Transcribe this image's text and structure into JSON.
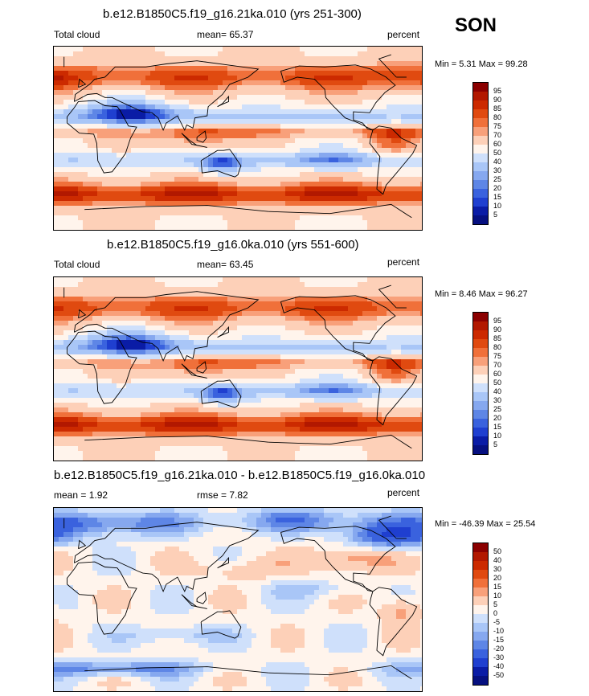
{
  "season": "SON",
  "chart_data": [
    {
      "type": "heatmap",
      "title": "b.e12.B1850C5.f19_g16.21ka.010 (yrs 251-300)",
      "left_label": "Total cloud",
      "center_label": "mean=  65.37",
      "right_label": "percent",
      "mean": 65.37,
      "min_max_label": "Min =   5.31 Max =  99.28",
      "min": 5.31,
      "max": 99.28,
      "units": "percent",
      "colorbar_levels": [
        "95",
        "90",
        "85",
        "80",
        "75",
        "70",
        "60",
        "50",
        "40",
        "30",
        "25",
        "20",
        "15",
        "10",
        "5"
      ],
      "colorbar_colors": [
        "#8b0000",
        "#b21800",
        "#cc2a00",
        "#e04a10",
        "#f0703a",
        "#f8a07a",
        "#fdd0b8",
        "#fff4ec",
        "#cfe0fb",
        "#a9c6f7",
        "#86a8ef",
        "#5e86e6",
        "#3a62de",
        "#1f3fd0",
        "#0a1ca6",
        "#061080"
      ],
      "field": "total_cloud_21ka"
    },
    {
      "type": "heatmap",
      "title": "b.e12.B1850C5.f19_g16.0ka.010 (yrs 551-600)",
      "left_label": "Total cloud",
      "center_label": "mean=  63.45",
      "right_label": "percent",
      "mean": 63.45,
      "min_max_label": "Min =   8.46 Max =  96.27",
      "min": 8.46,
      "max": 96.27,
      "units": "percent",
      "colorbar_levels": [
        "95",
        "90",
        "85",
        "80",
        "75",
        "70",
        "60",
        "50",
        "40",
        "30",
        "25",
        "20",
        "15",
        "10",
        "5"
      ],
      "colorbar_colors": [
        "#8b0000",
        "#b21800",
        "#cc2a00",
        "#e04a10",
        "#f0703a",
        "#f8a07a",
        "#fdd0b8",
        "#fff4ec",
        "#cfe0fb",
        "#a9c6f7",
        "#86a8ef",
        "#5e86e6",
        "#3a62de",
        "#1f3fd0",
        "#0a1ca6",
        "#061080"
      ],
      "field": "total_cloud_0ka"
    },
    {
      "type": "heatmap",
      "title": "b.e12.B1850C5.f19_g16.21ka.010 - b.e12.B1850C5.f19_g16.0ka.010",
      "left_label": "mean =   1.92",
      "center_label": "rmse =   7.82",
      "right_label": "percent",
      "mean": 1.92,
      "rmse": 7.82,
      "min_max_label": "Min = -46.39 Max =  25.54",
      "min": -46.39,
      "max": 25.54,
      "units": "percent",
      "colorbar_levels": [
        "50",
        "40",
        "30",
        "20",
        "15",
        "10",
        "5",
        "0",
        "-5",
        "-10",
        "-15",
        "-20",
        "-30",
        "-40",
        "-50"
      ],
      "colorbar_colors": [
        "#8b0000",
        "#b21800",
        "#cc2a00",
        "#e04a10",
        "#f0703a",
        "#f8a07a",
        "#fdd0b8",
        "#fff4ec",
        "#cfe0fb",
        "#a9c6f7",
        "#86a8ef",
        "#5e86e6",
        "#3a62de",
        "#1f3fd0",
        "#0a1ca6",
        "#061080"
      ],
      "field": "difference"
    }
  ]
}
